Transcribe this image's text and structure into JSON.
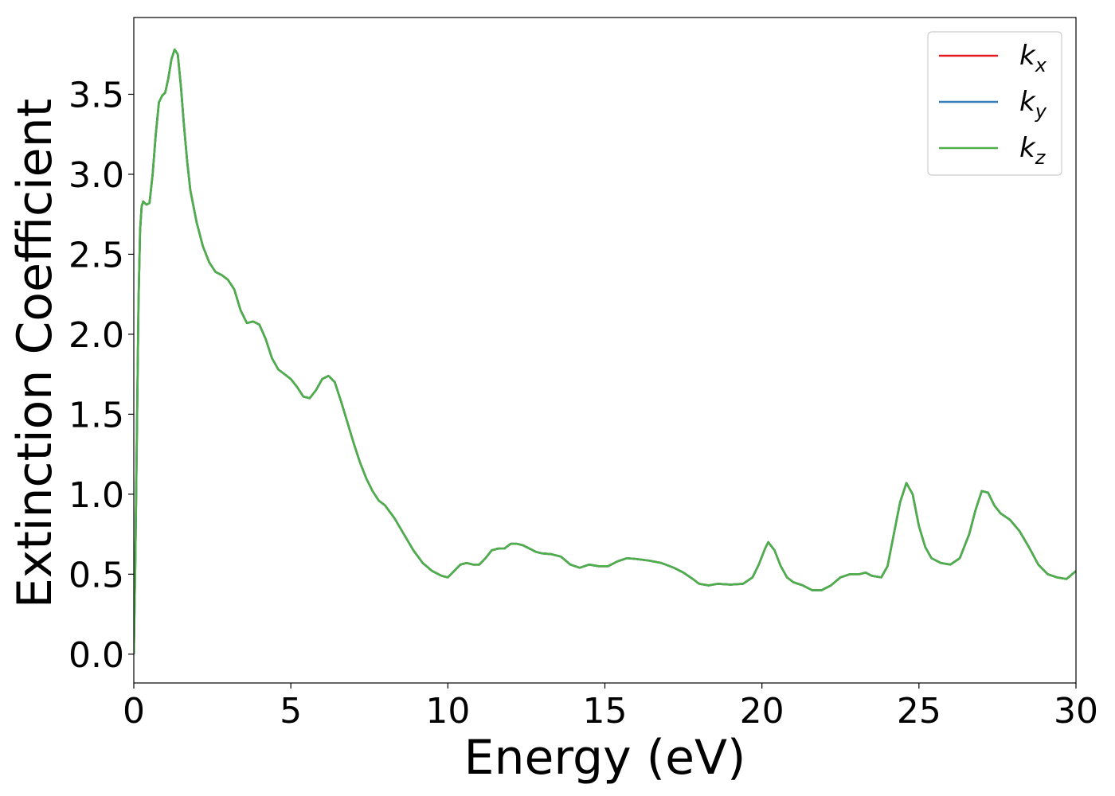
{
  "chart_data": {
    "type": "line",
    "xlabel": "Energy (eV)",
    "ylabel": "Extinction Coefficient",
    "xlim": [
      0,
      30
    ],
    "ylim": [
      -0.18,
      3.98
    ],
    "xticks": [
      "0",
      "5",
      "10",
      "15",
      "20",
      "25",
      "30"
    ],
    "yticks": [
      "0.0",
      "0.5",
      "1.0",
      "1.5",
      "2.0",
      "2.5",
      "3.0",
      "3.5"
    ],
    "grid": false,
    "legend_position": "top-right",
    "x": [
      0.0,
      0.05,
      0.1,
      0.15,
      0.2,
      0.25,
      0.3,
      0.4,
      0.5,
      0.6,
      0.7,
      0.8,
      0.9,
      1.0,
      1.1,
      1.2,
      1.3,
      1.4,
      1.5,
      1.6,
      1.7,
      1.8,
      2.0,
      2.2,
      2.4,
      2.6,
      2.8,
      3.0,
      3.2,
      3.4,
      3.6,
      3.8,
      4.0,
      4.2,
      4.4,
      4.6,
      4.8,
      5.0,
      5.2,
      5.4,
      5.6,
      5.8,
      6.0,
      6.2,
      6.4,
      6.6,
      6.8,
      7.0,
      7.2,
      7.4,
      7.6,
      7.8,
      8.0,
      8.3,
      8.6,
      8.9,
      9.2,
      9.5,
      9.8,
      10.0,
      10.2,
      10.4,
      10.6,
      10.8,
      11.0,
      11.2,
      11.4,
      11.6,
      11.8,
      12.0,
      12.2,
      12.4,
      12.6,
      12.8,
      13.0,
      13.3,
      13.6,
      13.9,
      14.2,
      14.5,
      14.8,
      15.1,
      15.4,
      15.7,
      16.0,
      16.4,
      16.8,
      17.2,
      17.5,
      17.8,
      18.0,
      18.3,
      18.6,
      19.0,
      19.4,
      19.7,
      19.9,
      20.1,
      20.2,
      20.4,
      20.6,
      20.8,
      21.0,
      21.3,
      21.6,
      21.9,
      22.2,
      22.5,
      22.8,
      23.1,
      23.3,
      23.5,
      23.8,
      24.0,
      24.2,
      24.4,
      24.6,
      24.8,
      25.0,
      25.2,
      25.4,
      25.7,
      26.0,
      26.3,
      26.6,
      26.8,
      27.0,
      27.2,
      27.4,
      27.6,
      27.9,
      28.2,
      28.5,
      28.8,
      29.1,
      29.4,
      29.7,
      30.0
    ],
    "series": [
      {
        "name": "k_x",
        "label": "k",
        "sub": "x",
        "color": "#e41a1c",
        "values": [
          0.0,
          0.6,
          1.4,
          2.2,
          2.65,
          2.8,
          2.83,
          2.81,
          2.82,
          3.0,
          3.25,
          3.45,
          3.49,
          3.51,
          3.6,
          3.72,
          3.78,
          3.75,
          3.55,
          3.3,
          3.08,
          2.9,
          2.7,
          2.55,
          2.45,
          2.39,
          2.37,
          2.34,
          2.28,
          2.15,
          2.07,
          2.08,
          2.06,
          1.97,
          1.85,
          1.78,
          1.75,
          1.72,
          1.67,
          1.61,
          1.6,
          1.65,
          1.72,
          1.74,
          1.7,
          1.58,
          1.45,
          1.32,
          1.2,
          1.1,
          1.02,
          0.96,
          0.93,
          0.85,
          0.75,
          0.65,
          0.57,
          0.52,
          0.49,
          0.48,
          0.52,
          0.56,
          0.57,
          0.56,
          0.56,
          0.6,
          0.65,
          0.66,
          0.66,
          0.69,
          0.69,
          0.68,
          0.66,
          0.64,
          0.63,
          0.625,
          0.61,
          0.56,
          0.54,
          0.56,
          0.55,
          0.55,
          0.58,
          0.6,
          0.595,
          0.585,
          0.57,
          0.54,
          0.51,
          0.47,
          0.44,
          0.43,
          0.44,
          0.435,
          0.44,
          0.48,
          0.56,
          0.66,
          0.7,
          0.65,
          0.55,
          0.48,
          0.45,
          0.43,
          0.4,
          0.4,
          0.43,
          0.48,
          0.5,
          0.5,
          0.51,
          0.49,
          0.48,
          0.55,
          0.75,
          0.95,
          1.07,
          1.0,
          0.8,
          0.67,
          0.6,
          0.57,
          0.56,
          0.6,
          0.75,
          0.9,
          1.02,
          1.01,
          0.93,
          0.88,
          0.84,
          0.77,
          0.67,
          0.56,
          0.5,
          0.48,
          0.47,
          0.52
        ]
      },
      {
        "name": "k_y",
        "label": "k",
        "sub": "y",
        "color": "#377eb8",
        "values": [
          0.0,
          0.6,
          1.4,
          2.2,
          2.65,
          2.8,
          2.83,
          2.81,
          2.82,
          3.0,
          3.25,
          3.45,
          3.49,
          3.51,
          3.6,
          3.72,
          3.78,
          3.75,
          3.55,
          3.3,
          3.08,
          2.9,
          2.7,
          2.55,
          2.45,
          2.39,
          2.37,
          2.34,
          2.28,
          2.15,
          2.07,
          2.08,
          2.06,
          1.97,
          1.85,
          1.78,
          1.75,
          1.72,
          1.67,
          1.61,
          1.6,
          1.65,
          1.72,
          1.74,
          1.7,
          1.58,
          1.45,
          1.32,
          1.2,
          1.1,
          1.02,
          0.96,
          0.93,
          0.85,
          0.75,
          0.65,
          0.57,
          0.52,
          0.49,
          0.48,
          0.52,
          0.56,
          0.57,
          0.56,
          0.56,
          0.6,
          0.65,
          0.66,
          0.66,
          0.69,
          0.69,
          0.68,
          0.66,
          0.64,
          0.63,
          0.625,
          0.61,
          0.56,
          0.54,
          0.56,
          0.55,
          0.55,
          0.58,
          0.6,
          0.595,
          0.585,
          0.57,
          0.54,
          0.51,
          0.47,
          0.44,
          0.43,
          0.44,
          0.435,
          0.44,
          0.48,
          0.56,
          0.66,
          0.7,
          0.65,
          0.55,
          0.48,
          0.45,
          0.43,
          0.4,
          0.4,
          0.43,
          0.48,
          0.5,
          0.5,
          0.51,
          0.49,
          0.48,
          0.55,
          0.75,
          0.95,
          1.07,
          1.0,
          0.8,
          0.67,
          0.6,
          0.57,
          0.56,
          0.6,
          0.75,
          0.9,
          1.02,
          1.01,
          0.93,
          0.88,
          0.84,
          0.77,
          0.67,
          0.56,
          0.5,
          0.48,
          0.47,
          0.52
        ]
      },
      {
        "name": "k_z",
        "label": "k",
        "sub": "z",
        "color": "#4daf4a",
        "values": [
          0.0,
          0.6,
          1.4,
          2.2,
          2.65,
          2.8,
          2.83,
          2.81,
          2.82,
          3.0,
          3.25,
          3.45,
          3.49,
          3.51,
          3.6,
          3.72,
          3.78,
          3.75,
          3.55,
          3.3,
          3.08,
          2.9,
          2.7,
          2.55,
          2.45,
          2.39,
          2.37,
          2.34,
          2.28,
          2.15,
          2.07,
          2.08,
          2.06,
          1.97,
          1.85,
          1.78,
          1.75,
          1.72,
          1.67,
          1.61,
          1.6,
          1.65,
          1.72,
          1.74,
          1.7,
          1.58,
          1.45,
          1.32,
          1.2,
          1.1,
          1.02,
          0.96,
          0.93,
          0.85,
          0.75,
          0.65,
          0.57,
          0.52,
          0.49,
          0.48,
          0.52,
          0.56,
          0.57,
          0.56,
          0.56,
          0.6,
          0.65,
          0.66,
          0.66,
          0.69,
          0.69,
          0.68,
          0.66,
          0.64,
          0.63,
          0.625,
          0.61,
          0.56,
          0.54,
          0.56,
          0.55,
          0.55,
          0.58,
          0.6,
          0.595,
          0.585,
          0.57,
          0.54,
          0.51,
          0.47,
          0.44,
          0.43,
          0.44,
          0.435,
          0.44,
          0.48,
          0.56,
          0.66,
          0.7,
          0.65,
          0.55,
          0.48,
          0.45,
          0.43,
          0.4,
          0.4,
          0.43,
          0.48,
          0.5,
          0.5,
          0.51,
          0.49,
          0.48,
          0.55,
          0.75,
          0.95,
          1.07,
          1.0,
          0.8,
          0.67,
          0.6,
          0.57,
          0.56,
          0.6,
          0.75,
          0.9,
          1.02,
          1.01,
          0.93,
          0.88,
          0.84,
          0.77,
          0.67,
          0.56,
          0.5,
          0.48,
          0.47,
          0.52
        ]
      }
    ]
  }
}
